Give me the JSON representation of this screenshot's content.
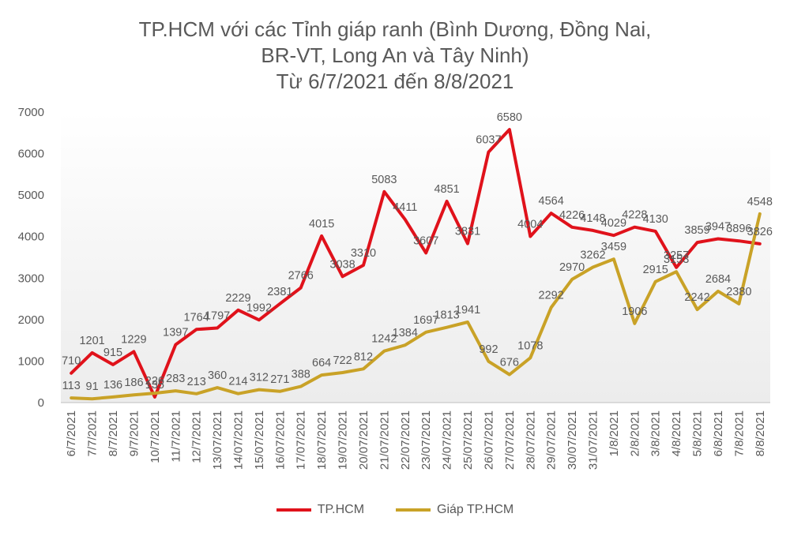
{
  "chart_data": {
    "type": "line",
    "title_lines": [
      "TP.HCM với các Tỉnh giáp ranh (Bình Dương, Đồng Nai,",
      "BR-VT, Long An và Tây Ninh)",
      "Từ 6/7/2021 đến 8/8/2021"
    ],
    "categories": [
      "6/7/2021",
      "7/7/2021",
      "8/7/2021",
      "9/7/2021",
      "10/7/2021",
      "11/7/2021",
      "12/7/2021",
      "13/07/2021",
      "14/07/2021",
      "15/07/2021",
      "16/07/2021",
      "17/07/2021",
      "18/07/2021",
      "19/07/2021",
      "20/07/2021",
      "21/07/2021",
      "22/07/2021",
      "23/07/2021",
      "24/07/2021",
      "25/07/2021",
      "26/07/2021",
      "27/07/2021",
      "28/07/2021",
      "29/07/2021",
      "30/07/2021",
      "31/07/2021",
      "1/8/2021",
      "2/8/2021",
      "3/8/2021",
      "4/8/2021",
      "5/8/2021",
      "6/8/2021",
      "7/8/2021",
      "8/8/2021"
    ],
    "series": [
      {
        "name": "TP.HCM",
        "color": "#e0121b",
        "values": [
          710,
          1201,
          915,
          1229,
          135,
          1397,
          1764,
          1797,
          2229,
          1992,
          2381,
          2766,
          4015,
          3038,
          3310,
          5083,
          4411,
          3607,
          4851,
          3831,
          6037,
          6580,
          4004,
          4564,
          4226,
          4148,
          4029,
          4228,
          4130,
          3257,
          3859,
          3947,
          3896,
          3826
        ]
      },
      {
        "name": "Giáp TP.HCM",
        "color": "#c9a227",
        "values": [
          113,
          91,
          136,
          186,
          226,
          283,
          213,
          360,
          214,
          312,
          271,
          388,
          664,
          722,
          812,
          1242,
          1384,
          1697,
          1813,
          1941,
          992,
          676,
          1078,
          2292,
          2970,
          3262,
          3459,
          1906,
          2915,
          3153,
          2242,
          2684,
          2380,
          4548
        ]
      }
    ],
    "ylim": [
      0,
      7000
    ],
    "yticks": [
      0,
      1000,
      2000,
      3000,
      4000,
      5000,
      6000,
      7000
    ],
    "grid": false,
    "legend_position": "bottom"
  }
}
